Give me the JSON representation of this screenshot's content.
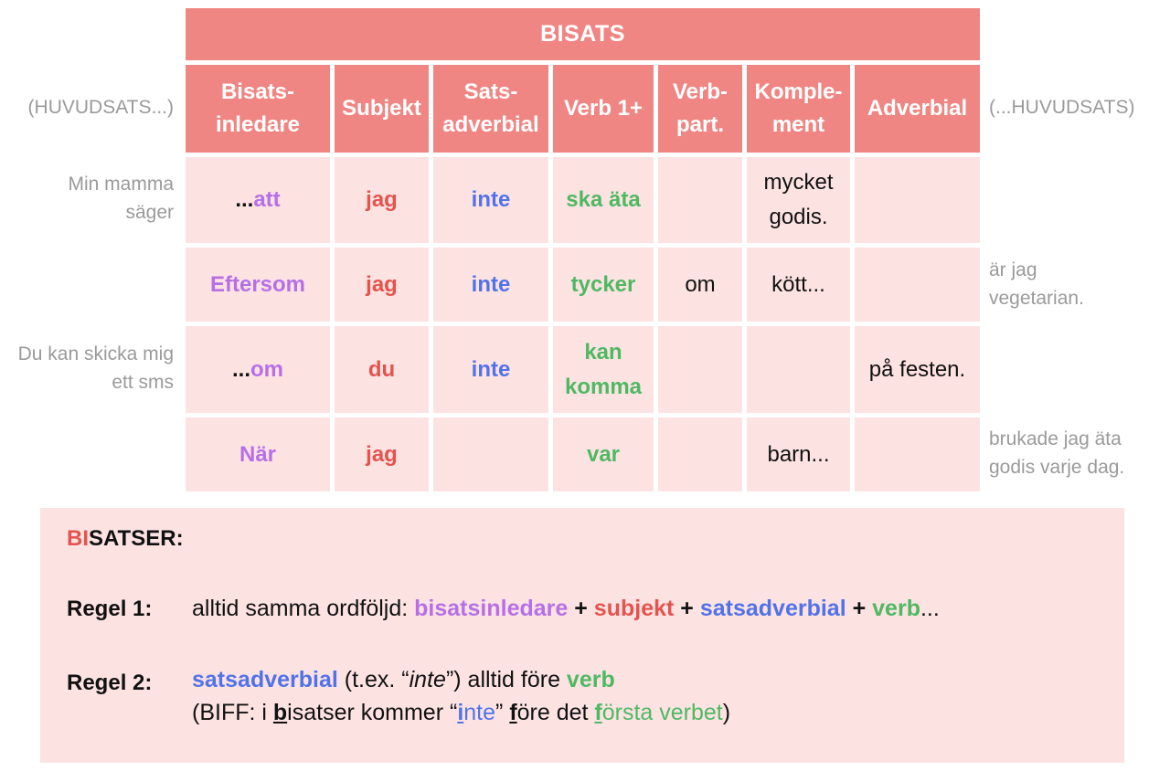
{
  "table": {
    "title": "BISATS",
    "side_header_left": "(HUVUDSATS...)",
    "side_header_right": "(...HUVUDSATS)",
    "headers": [
      [
        "Bisats-",
        "inledare"
      ],
      [
        "Subjekt"
      ],
      [
        "Sats-",
        "adverbial"
      ],
      [
        "Verb 1+"
      ],
      [
        "Verb-",
        "part."
      ],
      [
        "Komple-",
        "ment"
      ],
      [
        "Adverbial"
      ]
    ],
    "rows": [
      {
        "left": [
          "Min mamma",
          "säger"
        ],
        "right": [],
        "cells": [
          [
            "...",
            "att"
          ],
          [
            "jag"
          ],
          [
            "inte"
          ],
          [
            "ska äta"
          ],
          [],
          [
            "mycket",
            "godis."
          ],
          []
        ]
      },
      {
        "left": [],
        "right": [
          "är jag",
          "vegetarian."
        ],
        "cells": [
          [
            "Eftersom"
          ],
          [
            "jag"
          ],
          [
            "inte"
          ],
          [
            "tycker"
          ],
          [
            "om"
          ],
          [
            "kött..."
          ],
          []
        ]
      },
      {
        "left": [
          "Du kan skicka mig",
          "ett sms"
        ],
        "right": [],
        "cells": [
          [
            "...",
            "om"
          ],
          [
            "du"
          ],
          [
            "inte"
          ],
          [
            "kan",
            "komma"
          ],
          [],
          [],
          [
            "på festen."
          ]
        ]
      },
      {
        "left": [],
        "right": [
          "brukade jag äta",
          "godis varje dag."
        ],
        "cells": [
          [
            "När"
          ],
          [
            "jag"
          ],
          [],
          [
            "var"
          ],
          [],
          [
            "barn..."
          ],
          []
        ]
      }
    ]
  },
  "rules": {
    "title_part1": "BI",
    "title_part2": "SATSER:",
    "regel1_label": "Regel 1:",
    "regel1_text_prefix": "alltid samma ordföljd: ",
    "regel1_t1": "bisatsinledare",
    "regel1_plus": " + ",
    "regel1_t2": "subjekt",
    "regel1_t3": "satsadverbial",
    "regel1_t4": "verb",
    "regel1_ellipsis": "...",
    "regel2_label": "Regel 2:",
    "regel2_line1_a": "satsadverbial",
    "regel2_line1_b": " (t.ex. “",
    "regel2_line1_inte": "inte",
    "regel2_line1_c": "”) alltid före ",
    "regel2_line1_verb": "verb",
    "regel2_line2_a": "(BIFF: i ",
    "regel2_line2_b1": "b",
    "regel2_line2_b2": "isatser kommer “",
    "regel2_line2_i1": "i",
    "regel2_line2_i2": "nte",
    "regel2_line2_c": "” ",
    "regel2_line2_f1": "f",
    "regel2_line2_f2": "öre det ",
    "regel2_line2_ff1": "f",
    "regel2_line2_ff2": "örsta verbet",
    "regel2_line2_end": ")"
  },
  "colors": {
    "header_bg": "#f08683",
    "cell_bg": "#fce3e2",
    "bisatsinledare": "#b76fe6",
    "subjekt": "#e4534e",
    "satsadverbial": "#5272e8",
    "verb": "#4fb863",
    "side_text": "#9a9a9a"
  }
}
